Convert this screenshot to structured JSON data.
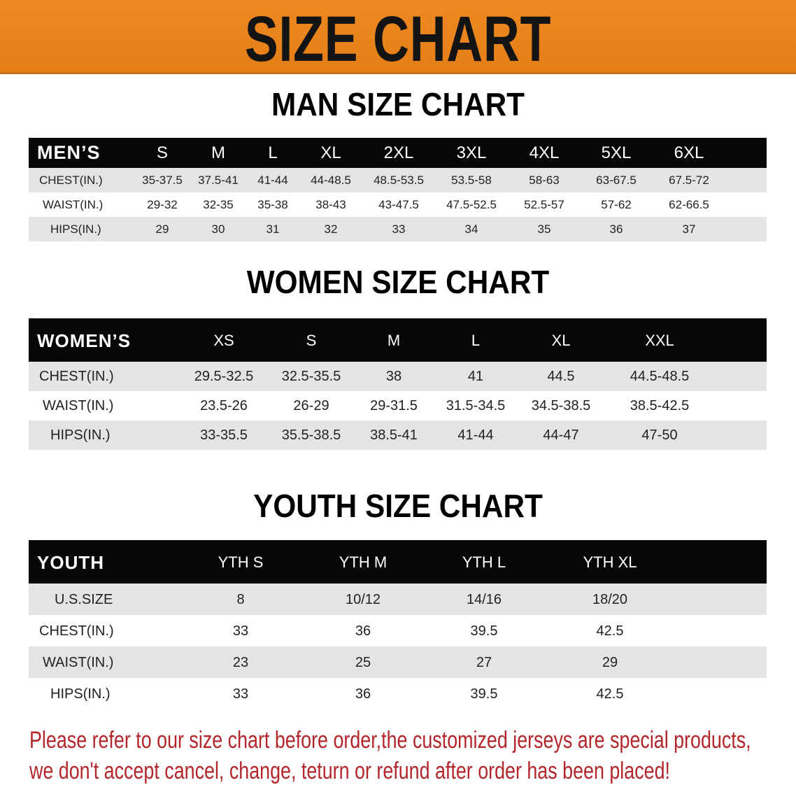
{
  "banner": {
    "title": "SIZE CHART",
    "color": "#e8821b"
  },
  "men": {
    "title": "MAN SIZE CHART",
    "header_label": "MEN’S",
    "sizes": [
      "S",
      "M",
      "L",
      "XL",
      "2XL",
      "3XL",
      "4XL",
      "5XL",
      "6XL"
    ],
    "rows": [
      {
        "label": "CHEST(IN.)",
        "values": [
          "35-37.5",
          "37.5-41",
          "41-44",
          "44-48.5",
          "48.5-53.5",
          "53.5-58",
          "58-63",
          "63-67.5",
          "67.5-72"
        ]
      },
      {
        "label": "WAIST(IN.)",
        "values": [
          "29-32",
          "32-35",
          "35-38",
          "38-43",
          "43-47.5",
          "47.5-52.5",
          "52.5-57",
          "57-62",
          "62-66.5"
        ]
      },
      {
        "label": "HIPS(IN.)",
        "values": [
          "29",
          "30",
          "31",
          "32",
          "33",
          "34",
          "35",
          "36",
          "37"
        ]
      }
    ]
  },
  "women": {
    "title": "WOMEN SIZE CHART",
    "header_label": "WOMEN’S",
    "sizes": [
      "XS",
      "S",
      "M",
      "L",
      "XL",
      "XXL"
    ],
    "rows": [
      {
        "label": "CHEST(IN.)",
        "values": [
          "29.5-32.5",
          "32.5-35.5",
          "38",
          "41",
          "44.5",
          "44.5-48.5"
        ]
      },
      {
        "label": "WAIST(IN.)",
        "values": [
          "23.5-26",
          "26-29",
          "29-31.5",
          "31.5-34.5",
          "34.5-38.5",
          "38.5-42.5"
        ]
      },
      {
        "label": "HIPS(IN.)",
        "values": [
          "33-35.5",
          "35.5-38.5",
          "38.5-41",
          "41-44",
          "44-47",
          "47-50"
        ]
      }
    ]
  },
  "youth": {
    "title": "YOUTH SIZE CHART",
    "header_label": "YOUTH",
    "sizes": [
      "YTH S",
      "YTH M",
      "YTH L",
      "YTH XL"
    ],
    "rows": [
      {
        "label": "U.S.SIZE",
        "values": [
          "8",
          "10/12",
          "14/16",
          "18/20"
        ]
      },
      {
        "label": "CHEST(IN.)",
        "values": [
          "33",
          "36",
          "39.5",
          "42.5"
        ]
      },
      {
        "label": "WAIST(IN.)",
        "values": [
          "23",
          "25",
          "27",
          "29"
        ]
      },
      {
        "label": "HIPS(IN.)",
        "values": [
          "33",
          "36",
          "39.5",
          "42.5"
        ]
      }
    ]
  },
  "notice": {
    "line1": "Please refer to our size chart before order,the customized jerseys are special products,",
    "line2": "we don't accept cancel, change, teturn or refund after order has been placed!",
    "color": "#b3262b"
  }
}
